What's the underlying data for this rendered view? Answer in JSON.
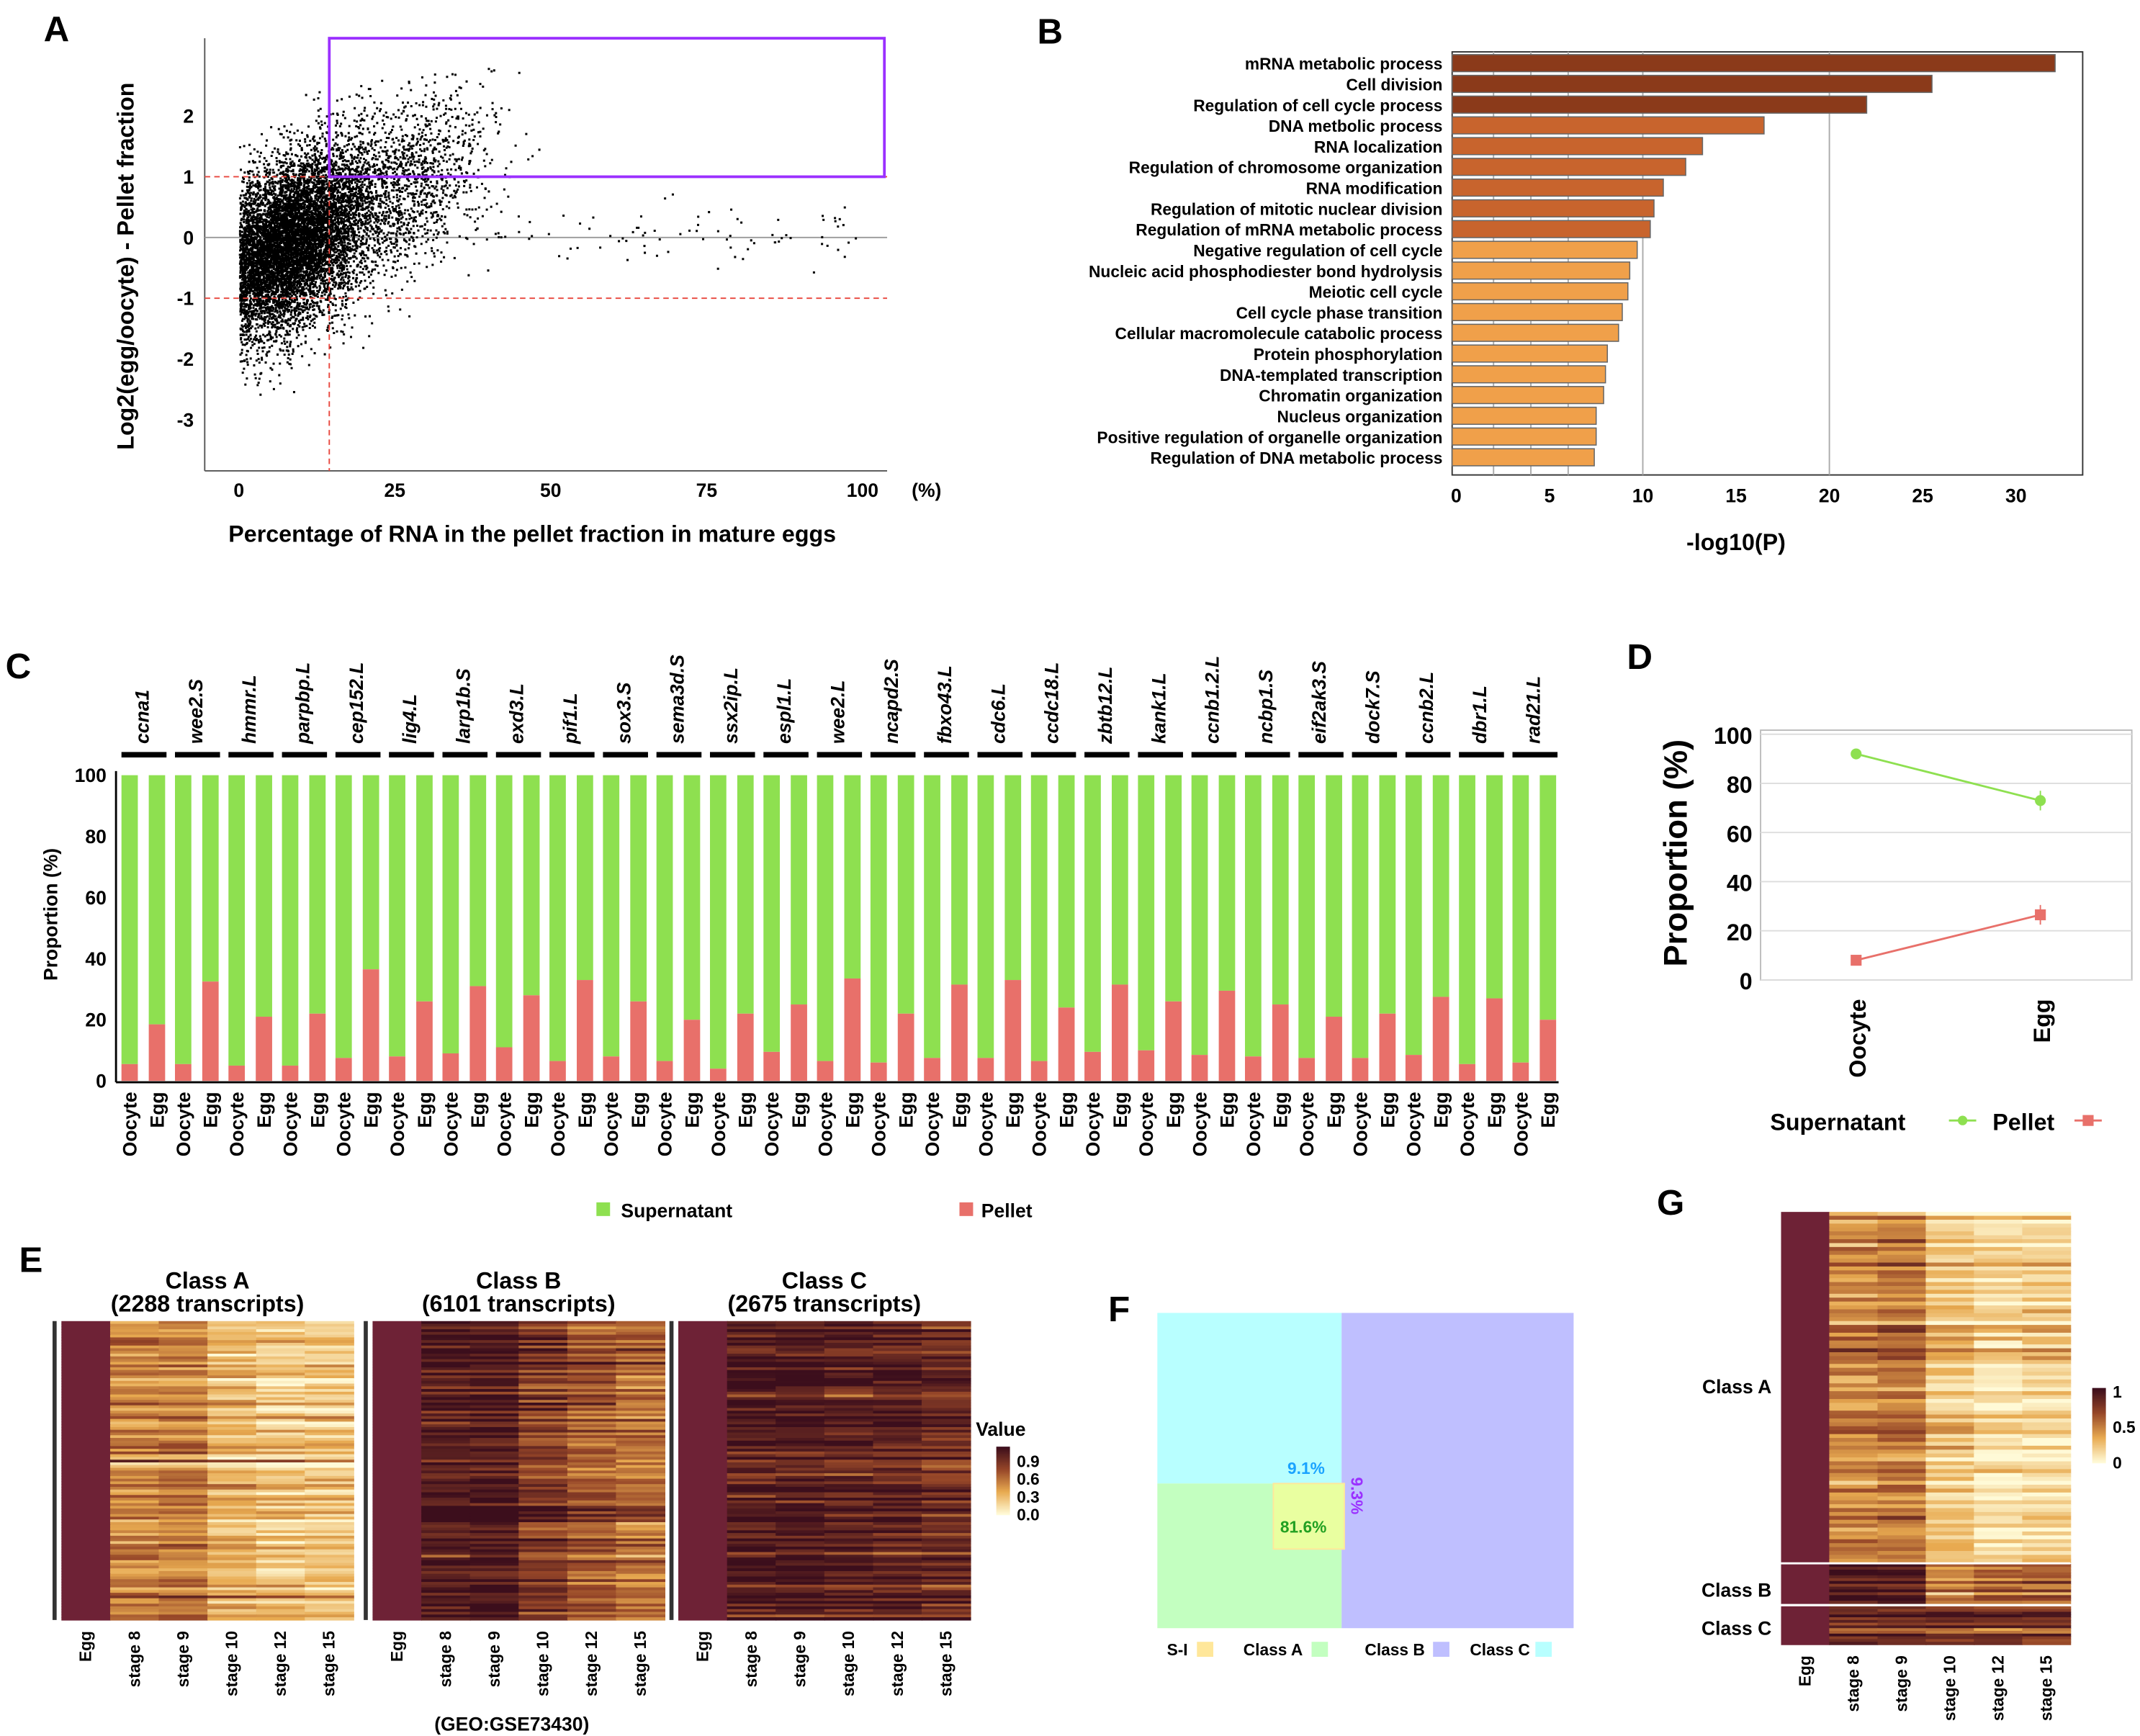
{
  "panels": {
    "A": "A",
    "B": "B",
    "C": "C",
    "D": "D",
    "E": "E",
    "F": "F",
    "G": "G"
  },
  "chart_data": [
    {
      "id": "A",
      "type": "scatter",
      "xlabel": "Percentage of RNA in the pellet fraction in mature eggs",
      "ylabel": "Log2(egg/oocyte) - Pellet fraction",
      "x_unit": "(%)",
      "xticks": [
        0,
        25,
        50,
        75,
        100
      ],
      "yticks": [
        -3,
        -2,
        -1,
        0,
        1,
        2
      ],
      "xlim": [
        -5,
        104
      ],
      "ylim": [
        -3.8,
        3.3
      ],
      "thresholds": {
        "x": 14.5,
        "y_upper": 1,
        "y_lower": -1,
        "color": "#e8453c"
      },
      "highlight_box": {
        "x": [
          14.5,
          104
        ],
        "y": [
          1,
          3.3
        ],
        "color": "#9b30ff"
      },
      "point_color": "#000000"
    },
    {
      "id": "B",
      "type": "bar",
      "orientation": "horizontal",
      "xlabel": "-log10(P)",
      "xticks": [
        0,
        5,
        10,
        15,
        20,
        25,
        30
      ],
      "xlim": [
        0,
        33.5
      ],
      "gridlines": [
        2,
        4,
        6,
        10,
        20
      ],
      "categories": [
        "mRNA metabolic process",
        "Cell division",
        "Regulation of cell cycle process",
        "DNA metbolic process",
        "RNA localization",
        "Regulation of chromosome organization",
        "RNA modification",
        "Regulation of mitotic nuclear division",
        "Regulation of mRNA metabolic process",
        "Negative regulation of cell cycle",
        "Nucleic acid phosphodiester bond hydrolysis",
        "Meiotic cell cycle",
        "Cell cycle phase transition",
        "Cellular macromolecule catabolic process",
        "Protein phosphorylation",
        "DNA-templated transcription",
        "Chromatin organization",
        "Nucleus organization",
        "Positive regulation of organelle organization",
        "Regulation of DNA metabolic process"
      ],
      "values": [
        32.1,
        25.5,
        22.0,
        16.5,
        13.2,
        12.3,
        11.1,
        10.6,
        10.4,
        9.7,
        9.3,
        9.2,
        8.9,
        8.7,
        8.1,
        8.0,
        7.9,
        7.5,
        7.5,
        7.4
      ],
      "colors": {
        "top": "#8b3a1a",
        "mid": "#c8642d",
        "low": "#f0a04a"
      }
    },
    {
      "id": "C",
      "type": "bar",
      "stacked": true,
      "ylabel": "Proportion (%)",
      "yticks": [
        0,
        20,
        40,
        60,
        80,
        100
      ],
      "ylim": [
        0,
        100
      ],
      "sample_labels": [
        "Oocyte",
        "Egg"
      ],
      "genes": [
        "ccna1",
        "wee2.S",
        "hmmr.L",
        "parpbp.L",
        "cep152.L",
        "lig4.L",
        "larp1b.S",
        "exd3.L",
        "pif1.L",
        "sox3.S",
        "sema3d.S",
        "ssx2ip.L",
        "espl1.L",
        "wee2.L",
        "ncapd2.S",
        "fbxo43.L",
        "cdc6.L",
        "ccdc18.L",
        "zbtb12.L",
        "kank1.L",
        "ccnb1.2.L",
        "ncbp1.S",
        "eif2ak3.S",
        "dock7.S",
        "ccnb2.L",
        "dbr1.L",
        "rad21.L"
      ],
      "pellet_oocyte": [
        5.5,
        5.5,
        5,
        5,
        7.5,
        8,
        9,
        11,
        6.5,
        8,
        6.5,
        4,
        9.5,
        6.5,
        6,
        7.5,
        7.5,
        6.5,
        9.5,
        10,
        8.5,
        8,
        7.5,
        7.5,
        8.5,
        5.5,
        6
      ],
      "pellet_egg": [
        18.5,
        32.5,
        21,
        22,
        36.5,
        26,
        31,
        28,
        33,
        26,
        20,
        22,
        25,
        33.5,
        22,
        31.5,
        33,
        24,
        31.5,
        26,
        29.5,
        25,
        21,
        22,
        27.5,
        27,
        20
      ],
      "series": [
        {
          "name": "Supernatant",
          "color": "#8ee050"
        },
        {
          "name": "Pellet",
          "color": "#e8706a"
        }
      ],
      "legend": "bottom"
    },
    {
      "id": "D",
      "type": "line",
      "ylabel": "Proportion (%)",
      "yticks": [
        0,
        20,
        40,
        60,
        80,
        100
      ],
      "ylim": [
        0,
        100
      ],
      "categories": [
        "Oocyte",
        "Egg"
      ],
      "series": [
        {
          "name": "Supernatant",
          "values": [
            92,
            73
          ],
          "error": [
            1,
            4
          ],
          "color": "#8ee050",
          "marker": "circle"
        },
        {
          "name": "Pellet",
          "values": [
            8,
            26.5
          ],
          "error": [
            1,
            4
          ],
          "color": "#e8706a",
          "marker": "square"
        }
      ],
      "grid": true,
      "legend": "bottom"
    },
    {
      "id": "E",
      "type": "heatmap",
      "maps": [
        {
          "title": "Class A",
          "subtitle": "(2288 transcripts)",
          "column_means": [
            1.0,
            0.45,
            0.47,
            0.28,
            0.22,
            0.2
          ]
        },
        {
          "title": "Class B",
          "subtitle": "(6101 transcripts)",
          "column_means": [
            1.0,
            0.95,
            0.95,
            0.75,
            0.62,
            0.55
          ]
        },
        {
          "title": "Class C",
          "subtitle": "(2675 transcripts)",
          "column_means": [
            1.0,
            0.93,
            0.93,
            0.9,
            0.88,
            0.8
          ]
        }
      ],
      "columns": [
        "Egg",
        "stage 8",
        "stage 9",
        "stage 10",
        "stage 12",
        "stage 15"
      ],
      "source": "(GEO:GSE73430)",
      "legend_title": "Value",
      "legend_ticks": [
        "0.9",
        "0.6",
        "0.3",
        "0.0"
      ]
    },
    {
      "id": "F",
      "type": "treemap",
      "labels": [
        "9.1%",
        "81.6%",
        "9.3%"
      ],
      "legend": [
        {
          "name": "S-I",
          "color": "#ffe79a"
        },
        {
          "name": "Class A",
          "color": "#c3ffc0"
        },
        {
          "name": "Class B",
          "color": "#bfbfff"
        },
        {
          "name": "Class C",
          "color": "#b8ffff"
        }
      ]
    },
    {
      "id": "G",
      "type": "heatmap",
      "rows": [
        "Class A",
        "Class B",
        "Class C"
      ],
      "columns": [
        "Egg",
        "stage 8",
        "stage 9",
        "stage 10",
        "stage 12",
        "stage 15"
      ],
      "column_means": {
        "Class A": [
          1.0,
          0.45,
          0.5,
          0.22,
          0.12,
          0.15
        ],
        "Class B": [
          1.0,
          0.9,
          0.9,
          0.45,
          0.55,
          0.6
        ],
        "Class C": [
          1.0,
          0.85,
          0.85,
          0.8,
          0.8,
          0.75
        ]
      },
      "legend_ticks": [
        "1",
        "0.5",
        "0"
      ]
    }
  ]
}
